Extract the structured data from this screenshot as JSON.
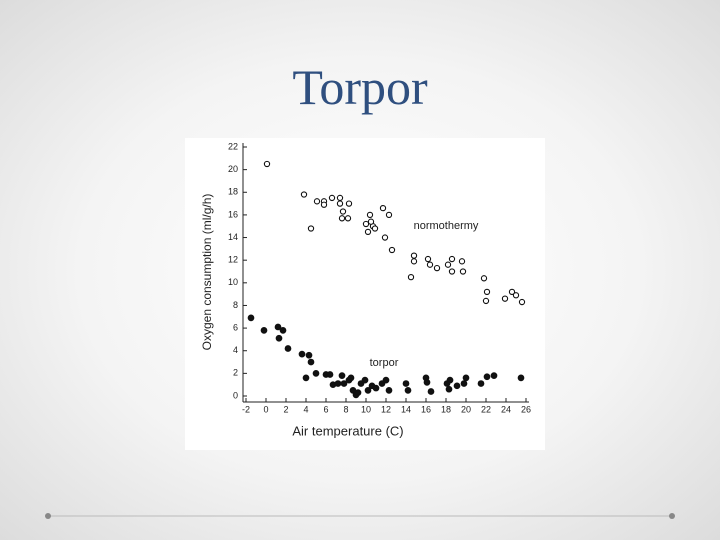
{
  "chart_data": {
    "type": "scatter",
    "title": "Torpor",
    "x_label": "Air temperature (C)",
    "y_label": "Oxygen consumption (ml/g/h)",
    "xlim": [
      -2,
      26
    ],
    "ylim": [
      0,
      22
    ],
    "xticks": [
      -2,
      0,
      2,
      4,
      6,
      8,
      10,
      12,
      14,
      16,
      18,
      20,
      22,
      24,
      26
    ],
    "yticks": [
      0,
      2,
      4,
      6,
      8,
      10,
      12,
      14,
      16,
      18,
      20,
      22
    ],
    "series": [
      {
        "name": "normothermy",
        "color": "#111111",
        "marker": "open",
        "x": [
          0.1,
          3.8,
          4.5,
          5.1,
          5.8,
          5.8,
          6.6,
          7.4,
          7.4,
          7.7,
          7.6,
          8.3,
          8.2,
          10.0,
          10.2,
          10.4,
          10.7,
          10.5,
          10.9,
          11.7,
          12.3,
          11.9,
          12.6,
          14.5,
          14.8,
          14.8,
          16.2,
          16.4,
          17.1,
          18.2,
          18.6,
          18.6,
          19.6,
          19.7,
          21.8,
          22.1,
          22.0,
          23.9,
          24.6,
          25.0,
          25.6
        ],
        "values": [
          20.5,
          17.8,
          14.8,
          17.2,
          17.2,
          16.9,
          17.5,
          17.5,
          17.0,
          16.3,
          15.7,
          17.0,
          15.7,
          15.2,
          14.5,
          16.0,
          15.0,
          15.4,
          14.8,
          16.6,
          16.0,
          14.0,
          12.9,
          10.5,
          12.4,
          11.9,
          12.1,
          11.6,
          11.3,
          11.6,
          12.1,
          11.0,
          11.9,
          11.0,
          10.4,
          9.2,
          8.4,
          8.6,
          9.2,
          8.9,
          8.3
        ]
      },
      {
        "name": "torpor",
        "color": "#111111",
        "marker": "filled",
        "x": [
          -1.5,
          -0.2,
          1.2,
          1.7,
          1.3,
          2.2,
          3.6,
          4.3,
          4.5,
          4.0,
          5.0,
          6.0,
          6.4,
          6.7,
          7.2,
          7.6,
          7.8,
          8.3,
          8.5,
          8.7,
          9.0,
          9.2,
          9.5,
          9.9,
          10.2,
          10.6,
          11.0,
          11.6,
          12.0,
          12.3,
          14.0,
          14.2,
          16.0,
          16.1,
          16.5,
          18.1,
          18.4,
          18.3,
          19.1,
          19.8,
          20.0,
          21.5,
          22.1,
          22.8,
          25.5
        ],
        "values": [
          6.9,
          5.8,
          6.1,
          5.8,
          5.1,
          4.2,
          3.7,
          3.6,
          3.0,
          1.6,
          2.0,
          1.9,
          1.9,
          1.0,
          1.1,
          1.8,
          1.1,
          1.4,
          1.6,
          0.5,
          0.1,
          0.3,
          1.1,
          1.4,
          0.5,
          0.9,
          0.7,
          1.1,
          1.4,
          0.5,
          1.1,
          0.5,
          1.6,
          1.2,
          0.4,
          1.1,
          1.4,
          0.6,
          0.9,
          1.1,
          1.6,
          1.1,
          1.7,
          1.8,
          1.6
        ]
      }
    ]
  }
}
